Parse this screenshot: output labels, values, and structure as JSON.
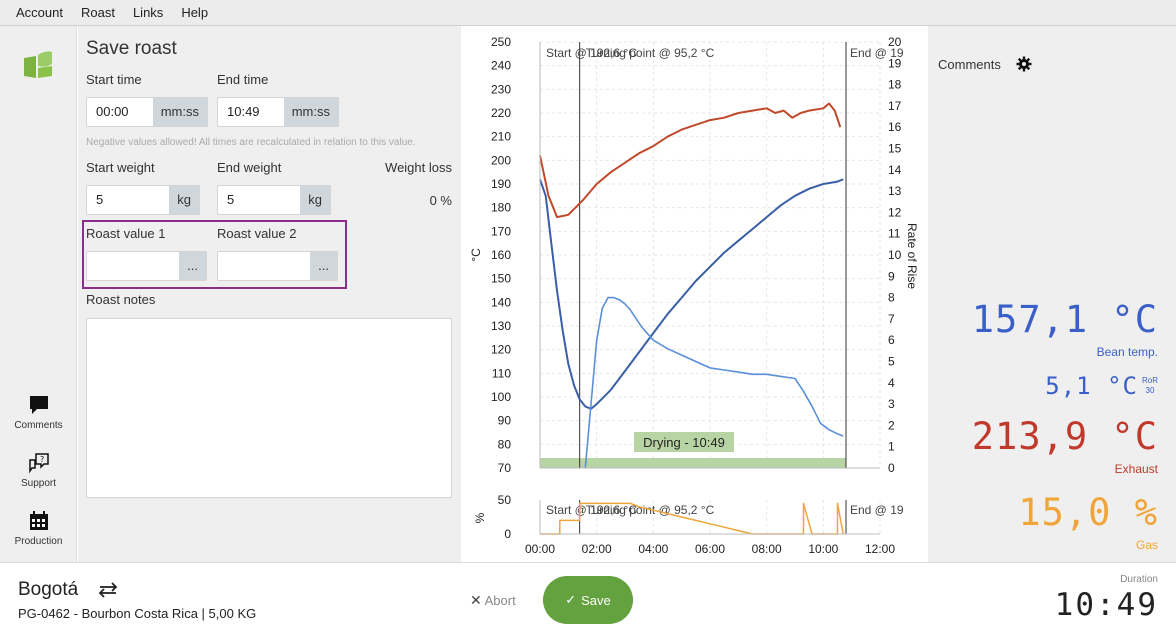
{
  "menu": [
    "Account",
    "Roast",
    "Links",
    "Help"
  ],
  "sidebar": {
    "items": [
      {
        "label": "Comments"
      },
      {
        "label": "Support"
      },
      {
        "label": "Production"
      }
    ]
  },
  "form": {
    "title": "Save roast",
    "start_time_label": "Start time",
    "start_time_value": "00:00",
    "start_time_unit": "mm:ss",
    "end_time_label": "End time",
    "end_time_value": "10:49",
    "end_time_unit": "mm:ss",
    "hint": "Negative values allowed! All times are recalculated in relation to this value.",
    "start_weight_label": "Start weight",
    "start_weight_value": "5",
    "start_weight_unit": "kg",
    "end_weight_label": "End weight",
    "end_weight_value": "5",
    "end_weight_unit": "kg",
    "weight_loss_label": "Weight loss",
    "weight_loss_value": "0 %",
    "roast_value_1_label": "Roast value 1",
    "roast_value_2_label": "Roast value 2",
    "more_label": "...",
    "notes_label": "Roast notes"
  },
  "chart_data": [
    {
      "type": "line",
      "ylabel": "°C",
      "y2label": "Rate of Rise",
      "ylim": [
        70,
        250
      ],
      "y2lim": [
        0,
        20
      ],
      "xlim": [
        "00:00",
        "12:00"
      ],
      "y_ticks": [
        "250",
        "240",
        "230",
        "220",
        "210",
        "200",
        "190",
        "180",
        "170",
        "160",
        "150",
        "140",
        "130",
        "120",
        "110",
        "100",
        "90",
        "80",
        "70"
      ],
      "y2_ticks": [
        "20",
        "19",
        "18",
        "17",
        "16",
        "15",
        "14",
        "13",
        "12",
        "11",
        "10",
        "9",
        "8",
        "7",
        "6",
        "5",
        "4",
        "3",
        "2",
        "1",
        "0"
      ],
      "events": [
        "Start @ 192,6 °C",
        "Turning point @ 95,2 °C",
        "End @ 19"
      ],
      "phase_label": "Drying - 10:49",
      "series": [
        {
          "name": "Exhaust",
          "color": "#c0492b",
          "x": [
            0,
            0.3,
            0.6,
            1,
            1.5,
            2,
            2.5,
            3,
            3.5,
            4,
            4.5,
            5,
            5.5,
            6,
            6.5,
            7,
            7.5,
            8,
            8.3,
            8.6,
            8.9,
            9.2,
            9.5,
            10,
            10.2,
            10.4,
            10.6
          ],
          "y": [
            202,
            185,
            176,
            177,
            183,
            190,
            195,
            199,
            203,
            206,
            210,
            213,
            215,
            217,
            218,
            220,
            221,
            222,
            220,
            221,
            218,
            220,
            221,
            222,
            224,
            221,
            214
          ]
        },
        {
          "name": "Bean temp.",
          "color": "#3a5fa8",
          "x": [
            0,
            0.2,
            0.4,
            0.6,
            0.8,
            1,
            1.2,
            1.4,
            1.6,
            1.8,
            2,
            2.5,
            3,
            3.5,
            4,
            4.5,
            5,
            5.5,
            6,
            6.5,
            7,
            7.5,
            8,
            8.5,
            9,
            9.5,
            10,
            10.5,
            10.7
          ],
          "y": [
            192,
            185,
            165,
            145,
            128,
            114,
            105,
            99,
            96,
            95,
            97,
            103,
            111,
            119,
            127,
            135,
            142,
            149,
            155,
            161,
            166,
            171,
            176,
            181,
            185,
            188,
            190,
            191,
            192
          ]
        },
        {
          "name": "RoR 30",
          "color": "#5b8fd9",
          "axis": "right",
          "x": [
            1.6,
            1.8,
            2,
            2.2,
            2.4,
            2.6,
            2.8,
            3,
            3.2,
            3.4,
            3.6,
            4,
            4.5,
            5,
            5.5,
            6,
            6.5,
            7,
            7.5,
            8,
            8.5,
            9,
            9.3,
            9.6,
            9.9,
            10.2,
            10.5,
            10.7
          ],
          "y": [
            0,
            3,
            6,
            7.5,
            8,
            8,
            7.9,
            7.7,
            7.4,
            7.0,
            6.6,
            6.0,
            5.6,
            5.3,
            5.0,
            4.7,
            4.6,
            4.5,
            4.4,
            4.4,
            4.3,
            4.2,
            3.6,
            2.9,
            2.1,
            1.8,
            1.6,
            1.5
          ]
        }
      ]
    },
    {
      "type": "line",
      "ylabel": "%",
      "ylim": [
        0,
        50
      ],
      "x_ticks": [
        "00:00",
        "02:00",
        "04:00",
        "06:00",
        "08:00",
        "10:00",
        "12:00"
      ],
      "events": [
        "Start @ 192,6 °C",
        "Turning point @ 95,2 °C",
        "End @ 19"
      ],
      "series": [
        {
          "name": "Gas",
          "color": "#f0a53a",
          "x": [
            0,
            0.7,
            0.7,
            1.4,
            1.4,
            3.2,
            3.5,
            4,
            4.5,
            5,
            5.5,
            6,
            6.5,
            7,
            7.5,
            8.5,
            9,
            9.3,
            9.3,
            9.6,
            10,
            10.5,
            10.5,
            10.7
          ],
          "y": [
            0,
            0,
            20,
            20,
            45,
            45,
            40,
            35,
            30,
            25,
            20,
            15,
            10,
            5,
            0,
            0,
            0,
            0,
            45,
            0,
            0,
            0,
            45,
            0
          ]
        }
      ]
    }
  ],
  "readouts": {
    "comments_label": "Comments",
    "bean_value": "157,1 °C",
    "bean_label": "Bean temp.",
    "ror_value": "5,1 °C",
    "ror_tag": "RoR",
    "ror_sub": "30",
    "exhaust_value": "213,9 °C",
    "exhaust_label": "Exhaust",
    "gas_value": "15,0 %",
    "gas_label": "Gas",
    "colors": {
      "bean": "#3a5fc8",
      "exhaust": "#c0392b",
      "gas": "#f0a53a"
    }
  },
  "footer": {
    "city": "Bogotá",
    "batch": "PG-0462 - Bourbon Costa Rica | 5,00 KG",
    "abort_label": "Abort",
    "save_label": "Save",
    "duration_label": "Duration",
    "duration_value": "10:49"
  }
}
